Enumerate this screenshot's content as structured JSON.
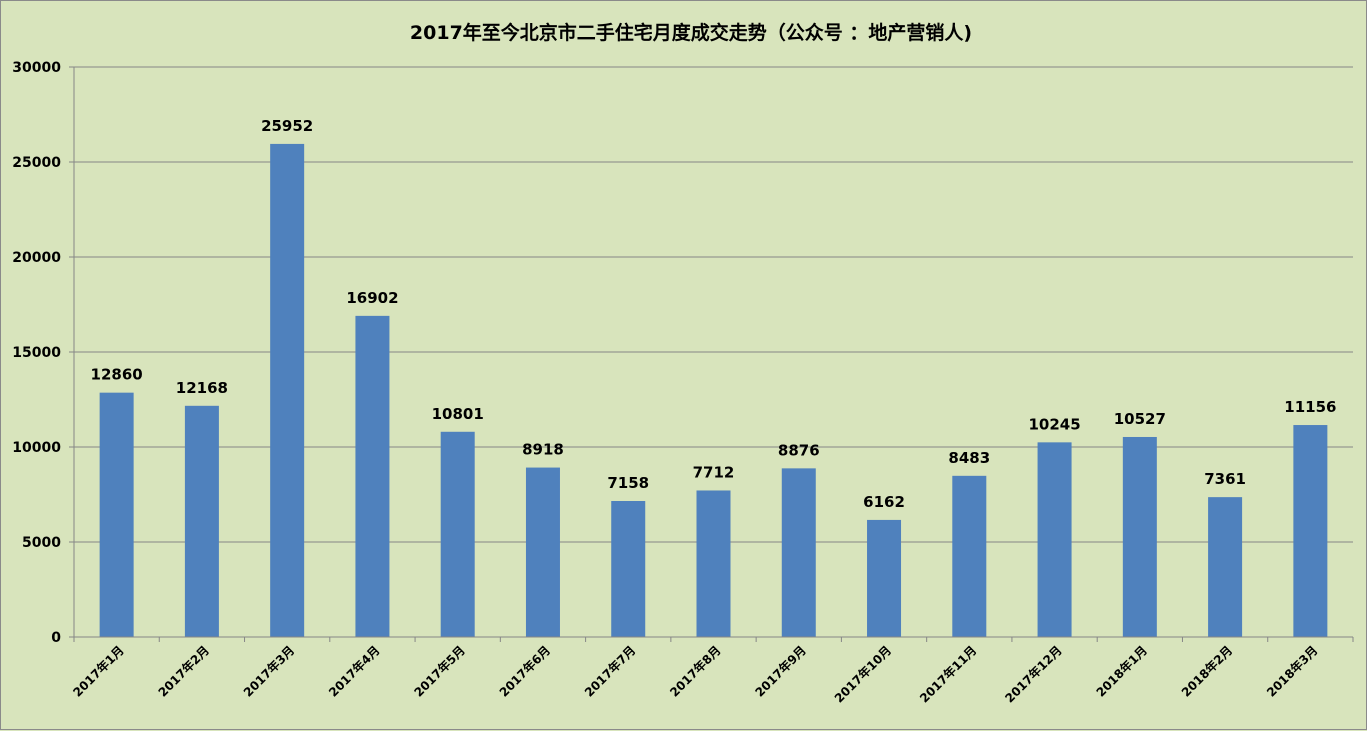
{
  "chart_data": {
    "type": "bar",
    "title": "2017年至今北京市二手住宅月度成交走势（公众号 ：地产营销人)",
    "xlabel": "",
    "ylabel": "",
    "ylim": [
      0,
      30000
    ],
    "yticks": [
      0,
      5000,
      10000,
      15000,
      20000,
      25000,
      30000
    ],
    "grid": true,
    "legend": null,
    "categories": [
      "2017年1月",
      "2017年2月",
      "2017年3月",
      "2017年4月",
      "2017年5月",
      "2017年6月",
      "2017年7月",
      "2017年8月",
      "2017年9月",
      "2017年10月",
      "2017年11月",
      "2017年12月",
      "2018年1月",
      "2018年2月",
      "2018年3月"
    ],
    "values": [
      12860,
      12168,
      25952,
      16902,
      10801,
      8918,
      7158,
      7712,
      8876,
      6162,
      8483,
      10245,
      10527,
      7361,
      11156
    ],
    "data_labels": true
  },
  "colors": {
    "background": "#d8e4bc",
    "bar": "#4f81bd",
    "gridline": "#868686",
    "text": "#000000"
  }
}
